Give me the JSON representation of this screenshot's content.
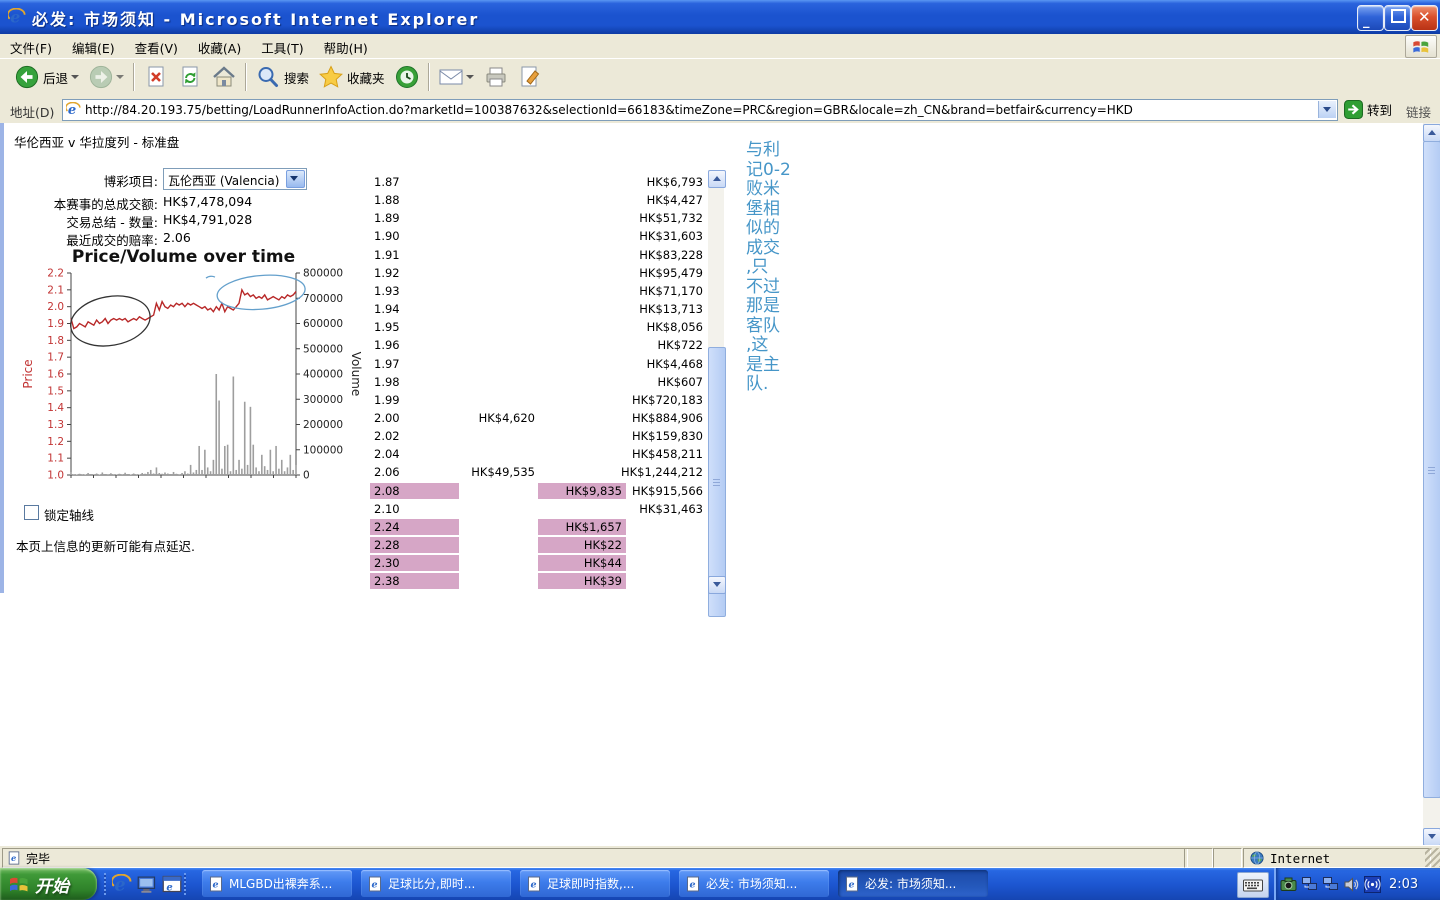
{
  "window": {
    "title": "必发: 市场须知 - Microsoft Internet Explorer",
    "icon": "ie-icon",
    "controls": [
      "minimize",
      "maximize",
      "close"
    ]
  },
  "menu_bar": {
    "items": [
      "文件(F)",
      "编辑(E)",
      "查看(V)",
      "收藏(A)",
      "工具(T)",
      "帮助(H)"
    ],
    "logo_icon": "windows-flag-icon"
  },
  "toolbar": {
    "items": [
      {
        "icon": "back-icon",
        "label": "后退",
        "dropdown": true
      },
      {
        "icon": "forward-icon",
        "dropdown": true,
        "disabled": true
      },
      {
        "sep": true
      },
      {
        "icon": "stop-icon"
      },
      {
        "icon": "refresh-icon"
      },
      {
        "icon": "home-icon"
      },
      {
        "sep": true
      },
      {
        "icon": "search-icon",
        "label": "搜索"
      },
      {
        "icon": "favorites-icon",
        "label": "收藏夹"
      },
      {
        "icon": "history-icon"
      },
      {
        "sep": true
      },
      {
        "icon": "mail-icon",
        "dropdown": true
      },
      {
        "icon": "print-icon"
      },
      {
        "icon": "edit-icon"
      }
    ]
  },
  "address_bar": {
    "label": "地址(D)",
    "url": "http://84.20.193.75/betting/LoadRunnerInfoAction.do?marketId=100387632&selectionId=66183&timeZone=PRC&region=GBR&locale=zh_CN&brand=betfair&currency=HKD",
    "go_label": "转到",
    "links_label": "链接"
  },
  "page": {
    "title": "华伦西亚 v 华拉度列 - 标准盘",
    "form": {
      "rows": [
        {
          "label": "博彩项目:",
          "value": "瓦伦西亚 (Valencia)",
          "type": "select"
        },
        {
          "label": "本赛事的总成交额:",
          "value": "HK$7,478,094"
        },
        {
          "label": "交易总结 - 数量:",
          "value": "HK$4,791,028"
        },
        {
          "label": "最近成交的赔率:",
          "value": "2.06"
        }
      ]
    },
    "lock_axis_label": "锁定轴线",
    "lock_axis_checked": false,
    "delay_note": "本页上信息的更新可能有点延迟.",
    "annotation": {
      "color": "#4696c8",
      "text": "与利记0-2败米堡相似的成交,只不过那是客队,这是主队.",
      "lines": [
        "与利",
        "记0-2",
        "败米",
        "堡相",
        "似的",
        "成交",
        ",只",
        "不过",
        "那是",
        "客队",
        ",这",
        "是主",
        "队."
      ]
    }
  },
  "chart_data": {
    "type": "line+bar",
    "title": "Price/Volume over time",
    "left_axis": {
      "label": "Price",
      "min": 1.0,
      "max": 2.2,
      "tick_step": 0.1,
      "color": "#c23434"
    },
    "right_axis": {
      "label": "Volume",
      "min": 0,
      "max": 800000,
      "tick_step": 100000,
      "color": "#222222"
    },
    "series": [
      {
        "name": "price",
        "type": "line",
        "color": "#b82828",
        "values": [
          1.93,
          1.87,
          1.88,
          1.9,
          1.89,
          1.88,
          1.91,
          1.9,
          1.89,
          1.92,
          1.9,
          1.91,
          1.93,
          1.9,
          1.92,
          1.93,
          1.92,
          1.93,
          1.92,
          1.93,
          1.91,
          1.92,
          1.93,
          1.92,
          1.94,
          1.93,
          1.92,
          1.93,
          1.94,
          1.95,
          2.02,
          1.98,
          2.03,
          2.0,
          1.99,
          2.01,
          2.0,
          2.02,
          2.01,
          2.02,
          2.0,
          2.02,
          2.01,
          2.02,
          2.01,
          2.0,
          1.99,
          2.0,
          1.98,
          1.99,
          1.97,
          2.0,
          1.98,
          2.02,
          1.97,
          2.0,
          1.99,
          1.98,
          2.0,
          2.02,
          2.1,
          2.07,
          2.08,
          2.06,
          2.07,
          2.05,
          2.06,
          2.05,
          2.07,
          2.04,
          2.05,
          2.06,
          2.05,
          2.04,
          2.06,
          2.05,
          2.07,
          2.06,
          2.07,
          2.09
        ]
      },
      {
        "name": "volume",
        "type": "bar",
        "color": "#9e9e9e",
        "values": [
          12000,
          3000,
          2000,
          5000,
          3000,
          2000,
          8000,
          4000,
          3000,
          6000,
          2000,
          10000,
          4000,
          3000,
          7000,
          3000,
          2000,
          5000,
          3000,
          9000,
          4000,
          2000,
          6000,
          3000,
          2000,
          8000,
          5000,
          12000,
          20000,
          6000,
          30000,
          8000,
          5000,
          10000,
          6000,
          4000,
          12000,
          5000,
          3000,
          8000,
          15000,
          6000,
          40000,
          10000,
          20000,
          115000,
          20000,
          100000,
          30000,
          15000,
          60000,
          400000,
          295000,
          25000,
          115000,
          120000,
          15000,
          390000,
          20000,
          60000,
          25000,
          290000,
          40000,
          270000,
          120000,
          30000,
          15000,
          80000,
          35000,
          20000,
          100000,
          15000,
          115000,
          25000,
          60000,
          15000,
          30000,
          80000,
          20000,
          40000
        ]
      }
    ],
    "annotations": [
      {
        "shape": "ellipse",
        "color": "#333333",
        "cx_frac": 0.175,
        "cy_price": 1.915,
        "rx_frac": 0.178,
        "ry_price": 0.145,
        "rotate": -10
      },
      {
        "shape": "ellipse",
        "color": "#64a0cc",
        "cx_frac": 0.845,
        "cy_price": 2.085,
        "rx_frac": 0.196,
        "ry_price": 0.1,
        "rotate": -5
      },
      {
        "shape": "dash",
        "color": "#64a0cc",
        "x_frac": 0.6,
        "price": 2.17
      }
    ]
  },
  "odds_table": {
    "highlight_color": "#d6a6c6",
    "rows": [
      {
        "price": "1.87",
        "back": "",
        "lay": "",
        "total": "HK$6,793",
        "highlight": false
      },
      {
        "price": "1.88",
        "back": "",
        "lay": "",
        "total": "HK$4,427",
        "highlight": false
      },
      {
        "price": "1.89",
        "back": "",
        "lay": "",
        "total": "HK$51,732",
        "highlight": false
      },
      {
        "price": "1.90",
        "back": "",
        "lay": "",
        "total": "HK$31,603",
        "highlight": false
      },
      {
        "price": "1.91",
        "back": "",
        "lay": "",
        "total": "HK$83,228",
        "highlight": false
      },
      {
        "price": "1.92",
        "back": "",
        "lay": "",
        "total": "HK$95,479",
        "highlight": false
      },
      {
        "price": "1.93",
        "back": "",
        "lay": "",
        "total": "HK$71,170",
        "highlight": false
      },
      {
        "price": "1.94",
        "back": "",
        "lay": "",
        "total": "HK$13,713",
        "highlight": false
      },
      {
        "price": "1.95",
        "back": "",
        "lay": "",
        "total": "HK$8,056",
        "highlight": false
      },
      {
        "price": "1.96",
        "back": "",
        "lay": "",
        "total": "HK$722",
        "highlight": false
      },
      {
        "price": "1.97",
        "back": "",
        "lay": "",
        "total": "HK$4,468",
        "highlight": false
      },
      {
        "price": "1.98",
        "back": "",
        "lay": "",
        "total": "HK$607",
        "highlight": false
      },
      {
        "price": "1.99",
        "back": "",
        "lay": "",
        "total": "HK$720,183",
        "highlight": false
      },
      {
        "price": "2.00",
        "back": "HK$4,620",
        "lay": "",
        "total": "HK$884,906",
        "highlight": false
      },
      {
        "price": "2.02",
        "back": "",
        "lay": "",
        "total": "HK$159,830",
        "highlight": false
      },
      {
        "price": "2.04",
        "back": "",
        "lay": "",
        "total": "HK$458,211",
        "highlight": false
      },
      {
        "price": "2.06",
        "back": "HK$49,535",
        "lay": "",
        "total": "HK$1,244,212",
        "highlight": false
      },
      {
        "price": "2.08",
        "back": "",
        "lay": "HK$9,835",
        "total": "HK$915,566",
        "highlight": true
      },
      {
        "price": "2.10",
        "back": "",
        "lay": "",
        "total": "HK$31,463",
        "highlight": false
      },
      {
        "price": "2.24",
        "back": "",
        "lay": "HK$1,657",
        "total": "",
        "highlight": true
      },
      {
        "price": "2.28",
        "back": "",
        "lay": "HK$22",
        "total": "",
        "highlight": true
      },
      {
        "price": "2.30",
        "back": "",
        "lay": "HK$44",
        "total": "",
        "highlight": true
      },
      {
        "price": "2.38",
        "back": "",
        "lay": "HK$39",
        "total": "",
        "highlight": true
      }
    ]
  },
  "status_bar": {
    "left_text": "完毕",
    "left_icon": "ie-page-icon",
    "zone_icon": "globe-icon",
    "zone_label": "Internet"
  },
  "taskbar": {
    "start_label": "开始",
    "start_icon": "windows-flag-icon",
    "quick_launch": [
      "ie-icon",
      "desktop-icon",
      "browser-window-icon"
    ],
    "buttons": [
      {
        "icon": "ie-page-icon",
        "label": "MLGBD出裸奔系...",
        "active": false
      },
      {
        "icon": "ie-page-icon",
        "label": "足球比分,即时...",
        "active": false
      },
      {
        "icon": "ie-page-icon",
        "label": "足球即时指数,...",
        "active": false
      },
      {
        "icon": "ie-page-icon",
        "label": "必发: 市场须知...",
        "active": false
      },
      {
        "icon": "ie-page-icon",
        "label": "必发: 市场须知...",
        "active": true
      }
    ],
    "language_icon": "keyboard-icon",
    "tray_icons": [
      "camera-icon",
      "network-icon",
      "network-icon",
      "volume-icon",
      "wireless-icon"
    ],
    "clock": "2:03"
  }
}
